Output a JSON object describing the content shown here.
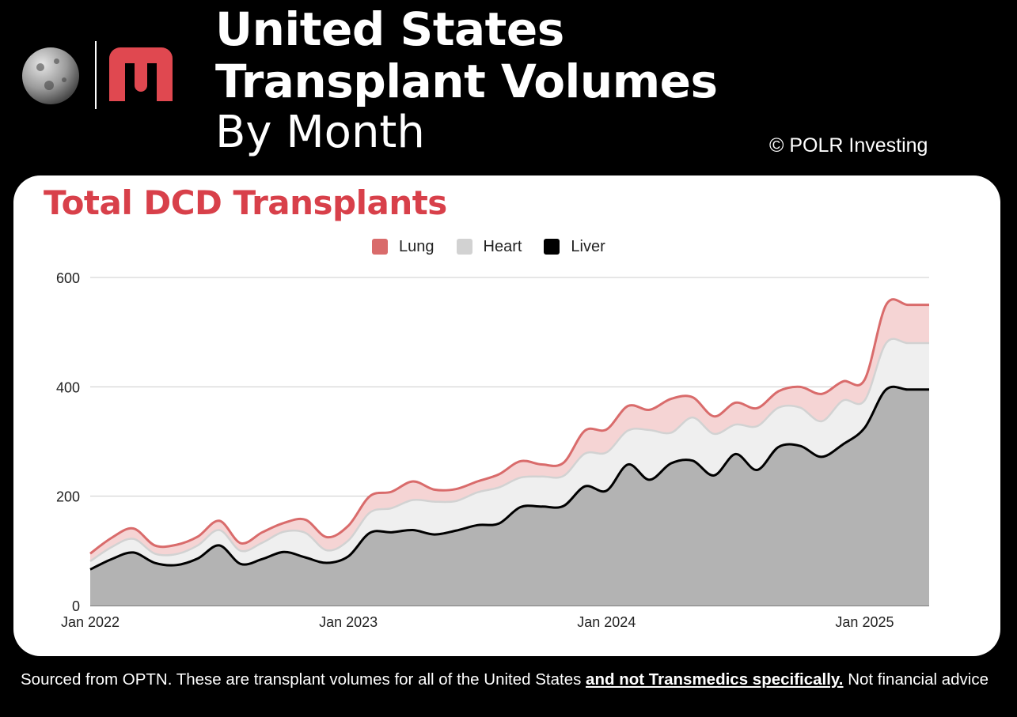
{
  "header": {
    "title_line1": "United States",
    "title_line2": "Transplant Volumes",
    "subtitle": "By Month",
    "copyright": "© POLR Investing"
  },
  "colors": {
    "lung": "#d96b6b",
    "heart": "#d2d2d2",
    "liver": "#000000",
    "title_red": "#d8404a",
    "logo_red": "#e04850"
  },
  "chart_data": {
    "type": "area",
    "stacked": true,
    "title": "Total DCD Transplants",
    "legend_position": "top",
    "grid": true,
    "ylim": [
      0,
      600
    ],
    "y_ticks": [
      0,
      200,
      400,
      600
    ],
    "x_ticks": [
      "Jan 2022",
      "Jan 2023",
      "Jan 2024",
      "Jan 2025"
    ],
    "x": [
      "2022-01",
      "2022-02",
      "2022-03",
      "2022-04",
      "2022-05",
      "2022-06",
      "2022-07",
      "2022-08",
      "2022-09",
      "2022-10",
      "2022-11",
      "2022-12",
      "2023-01",
      "2023-02",
      "2023-03",
      "2023-04",
      "2023-05",
      "2023-06",
      "2023-07",
      "2023-08",
      "2023-09",
      "2023-10",
      "2023-11",
      "2023-12",
      "2024-01",
      "2024-02",
      "2024-03",
      "2024-04",
      "2024-05",
      "2024-06",
      "2024-07",
      "2024-08",
      "2024-09",
      "2024-10",
      "2024-11",
      "2024-12",
      "2025-01",
      "2025-02",
      "2025-03",
      "2025-04"
    ],
    "series": [
      {
        "name": "Liver",
        "values": [
          66,
          85,
          97,
          78,
          74,
          86,
          110,
          76,
          85,
          98,
          88,
          78,
          90,
          133,
          134,
          138,
          130,
          137,
          147,
          150,
          180,
          181,
          182,
          218,
          210,
          258,
          230,
          260,
          265,
          238,
          277,
          248,
          290,
          292,
          272,
          295,
          325,
          395,
          395,
          395
        ]
      },
      {
        "name": "Heart",
        "values": [
          15,
          22,
          25,
          17,
          20,
          24,
          28,
          24,
          30,
          37,
          45,
          23,
          29,
          37,
          44,
          55,
          60,
          54,
          60,
          66,
          54,
          55,
          55,
          60,
          70,
          62,
          91,
          56,
          79,
          76,
          54,
          80,
          72,
          70,
          65,
          80,
          50,
          85,
          85,
          85
        ]
      },
      {
        "name": "Lung",
        "values": [
          14,
          17,
          19,
          15,
          17,
          16,
          17,
          14,
          19,
          16,
          24,
          24,
          27,
          30,
          30,
          34,
          22,
          22,
          20,
          24,
          30,
          22,
          24,
          42,
          42,
          45,
          37,
          62,
          37,
          32,
          40,
          33,
          30,
          38,
          50,
          35,
          38,
          70,
          70,
          70
        ]
      }
    ]
  },
  "footer": {
    "text_before": "Sourced from OPTN. These are transplant volumes for all of the United States ",
    "emphasis": "and not Transmedics specifically.",
    "text_after": " Not financial advice"
  }
}
